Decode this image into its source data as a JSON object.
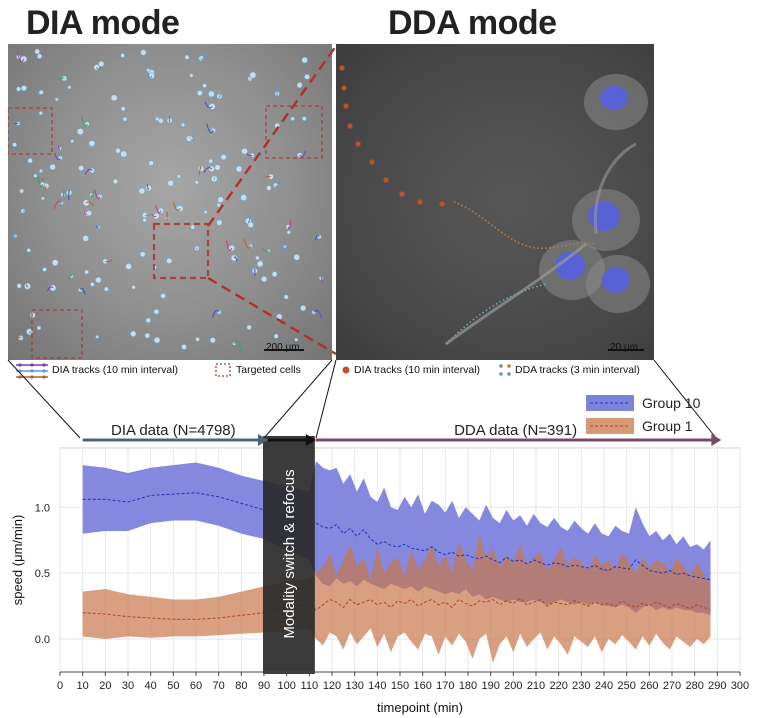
{
  "header": {
    "dia_title": "DIA mode",
    "dda_title": "DDA mode"
  },
  "panels": {
    "dia_scale_label": "200 μm",
    "dda_scale_label": "20 μm"
  },
  "legends": {
    "dia_tracks": "DIA tracks (10 min interval)",
    "targeted_cells": "Targeted cells",
    "dia_tracks_right": "DIA tracks (10 min interval)",
    "dda_tracks": "DDA tracks (3 min interval)"
  },
  "colors": {
    "group10_fill": "#6f74d9",
    "group10_line": "#2b2fb8",
    "group1_fill": "#c8764a",
    "group1_line": "#b0422b",
    "dia_arrow": "#4a6478",
    "dda_arrow": "#7a4a66",
    "switch_box": "#2a2a2a",
    "target_box": "#b03030"
  },
  "chart_data": {
    "type": "area",
    "xlabel": "timepoint (min)",
    "ylabel": "speed (μm/min)",
    "xlim": [
      0,
      300
    ],
    "ylim": [
      -0.25,
      1.45
    ],
    "x_ticks": [
      0,
      10,
      20,
      30,
      40,
      50,
      60,
      70,
      80,
      90,
      100,
      110,
      120,
      130,
      140,
      150,
      160,
      170,
      180,
      190,
      200,
      210,
      220,
      230,
      240,
      250,
      260,
      270,
      280,
      290,
      300
    ],
    "y_ticks": [
      0.0,
      0.5,
      1.0
    ],
    "y_tick_labels": [
      "0.0",
      "0.5",
      "1.0"
    ],
    "grid": true,
    "legend_position": "top-right",
    "phases": [
      {
        "label": "DIA data (N=4798)",
        "x_start": 10,
        "x_end": 90
      },
      {
        "label": "DDA data (N=391)",
        "x_start": 112,
        "x_end": 290
      }
    ],
    "annotation": {
      "label": "Modality switch & refocus",
      "x_start": 90,
      "x_end": 112
    },
    "series": [
      {
        "name": "Group 10",
        "x": [
          10,
          20,
          30,
          40,
          50,
          60,
          70,
          80,
          90,
          100,
          110,
          113,
          116,
          119,
          122,
          125,
          128,
          131,
          134,
          137,
          140,
          143,
          146,
          149,
          152,
          155,
          158,
          161,
          164,
          167,
          170,
          173,
          176,
          179,
          182,
          185,
          188,
          191,
          194,
          197,
          200,
          203,
          206,
          209,
          212,
          215,
          218,
          221,
          224,
          227,
          230,
          233,
          236,
          239,
          242,
          245,
          248,
          251,
          254,
          257,
          260,
          263,
          266,
          269,
          272,
          275,
          278,
          281,
          284,
          287
        ],
        "mean": [
          1.06,
          1.06,
          1.04,
          1.09,
          1.1,
          1.11,
          1.08,
          1.03,
          0.98,
          0.92,
          0.86,
          0.88,
          0.85,
          0.84,
          0.87,
          0.8,
          0.84,
          0.78,
          0.83,
          0.76,
          0.72,
          0.74,
          0.71,
          0.7,
          0.72,
          0.69,
          0.68,
          0.67,
          0.7,
          0.66,
          0.64,
          0.66,
          0.63,
          0.64,
          0.62,
          0.61,
          0.63,
          0.6,
          0.58,
          0.62,
          0.59,
          0.6,
          0.57,
          0.6,
          0.58,
          0.56,
          0.58,
          0.57,
          0.55,
          0.56,
          0.55,
          0.54,
          0.56,
          0.53,
          0.52,
          0.55,
          0.54,
          0.53,
          0.6,
          0.56,
          0.52,
          0.51,
          0.5,
          0.52,
          0.49,
          0.5,
          0.48,
          0.47,
          0.46,
          0.45
        ],
        "upper": [
          1.32,
          1.3,
          1.26,
          1.3,
          1.32,
          1.34,
          1.3,
          1.24,
          1.2,
          1.16,
          1.12,
          1.35,
          1.3,
          1.28,
          1.3,
          1.18,
          1.25,
          1.12,
          1.22,
          1.08,
          1.04,
          1.15,
          1.0,
          0.98,
          1.08,
          1.0,
          1.1,
          0.95,
          1.05,
          1.02,
          0.96,
          1.05,
          0.92,
          1.0,
          0.95,
          0.9,
          1.02,
          0.92,
          0.88,
          0.98,
          0.9,
          0.94,
          0.86,
          0.95,
          0.88,
          0.85,
          0.92,
          0.85,
          0.82,
          0.9,
          0.84,
          0.8,
          0.88,
          0.8,
          0.78,
          0.86,
          0.82,
          0.8,
          1.0,
          0.88,
          0.78,
          0.82,
          0.75,
          0.8,
          0.72,
          0.78,
          0.7,
          0.72,
          0.68,
          0.75
        ],
        "lower": [
          0.8,
          0.82,
          0.82,
          0.88,
          0.9,
          0.9,
          0.86,
          0.8,
          0.76,
          0.68,
          0.6,
          0.48,
          0.42,
          0.4,
          0.46,
          0.42,
          0.44,
          0.4,
          0.45,
          0.42,
          0.4,
          0.38,
          0.42,
          0.4,
          0.38,
          0.4,
          0.36,
          0.4,
          0.38,
          0.36,
          0.34,
          0.36,
          0.34,
          0.38,
          0.32,
          0.34,
          0.3,
          0.32,
          0.3,
          0.28,
          0.3,
          0.28,
          0.28,
          0.3,
          0.28,
          0.26,
          0.28,
          0.3,
          0.28,
          0.26,
          0.28,
          0.26,
          0.28,
          0.26,
          0.25,
          0.24,
          0.26,
          0.24,
          0.2,
          0.24,
          0.26,
          0.22,
          0.24,
          0.22,
          0.24,
          0.22,
          0.22,
          0.2,
          0.2,
          0.18
        ]
      },
      {
        "name": "Group 1",
        "x": [
          10,
          20,
          30,
          40,
          50,
          60,
          70,
          80,
          90,
          100,
          110,
          113,
          116,
          119,
          122,
          125,
          128,
          131,
          134,
          137,
          140,
          143,
          146,
          149,
          152,
          155,
          158,
          161,
          164,
          167,
          170,
          173,
          176,
          179,
          182,
          185,
          188,
          191,
          194,
          197,
          200,
          203,
          206,
          209,
          212,
          215,
          218,
          221,
          224,
          227,
          230,
          233,
          236,
          239,
          242,
          245,
          248,
          251,
          254,
          257,
          260,
          263,
          266,
          269,
          272,
          275,
          278,
          281,
          284,
          287
        ],
        "mean": [
          0.2,
          0.19,
          0.17,
          0.16,
          0.15,
          0.15,
          0.16,
          0.18,
          0.2,
          0.24,
          0.27,
          0.22,
          0.26,
          0.3,
          0.28,
          0.24,
          0.3,
          0.26,
          0.28,
          0.3,
          0.26,
          0.28,
          0.24,
          0.29,
          0.27,
          0.3,
          0.25,
          0.28,
          0.3,
          0.26,
          0.28,
          0.24,
          0.3,
          0.27,
          0.25,
          0.29,
          0.28,
          0.3,
          0.26,
          0.29,
          0.27,
          0.31,
          0.26,
          0.28,
          0.3,
          0.25,
          0.28,
          0.27,
          0.26,
          0.29,
          0.27,
          0.25,
          0.28,
          0.26,
          0.27,
          0.25,
          0.29,
          0.26,
          0.24,
          0.27,
          0.25,
          0.28,
          0.26,
          0.24,
          0.27,
          0.25,
          0.23,
          0.26,
          0.24,
          0.22
        ],
        "upper": [
          0.36,
          0.38,
          0.34,
          0.32,
          0.3,
          0.3,
          0.32,
          0.36,
          0.4,
          0.44,
          0.46,
          0.5,
          0.55,
          0.65,
          0.48,
          0.6,
          0.72,
          0.55,
          0.62,
          0.45,
          0.7,
          0.5,
          0.58,
          0.62,
          0.48,
          0.68,
          0.52,
          0.6,
          0.72,
          0.55,
          0.64,
          0.5,
          0.74,
          0.6,
          0.52,
          0.8,
          0.62,
          0.68,
          0.55,
          0.64,
          0.58,
          0.72,
          0.56,
          0.62,
          0.66,
          0.52,
          0.6,
          0.7,
          0.56,
          0.62,
          0.58,
          0.52,
          0.64,
          0.56,
          0.6,
          0.52,
          0.66,
          0.58,
          0.5,
          0.62,
          0.54,
          0.6,
          0.58,
          0.5,
          0.62,
          0.55,
          0.48,
          0.58,
          0.5,
          0.4
        ],
        "lower": [
          0.02,
          0.0,
          0.02,
          0.01,
          0.02,
          0.02,
          0.03,
          0.04,
          0.05,
          0.06,
          0.08,
          0.0,
          -0.05,
          0.05,
          0.02,
          -0.08,
          0.05,
          -0.04,
          0.02,
          0.08,
          -0.06,
          0.04,
          -0.1,
          0.02,
          0.05,
          -0.02,
          -0.08,
          0.04,
          0.02,
          -0.12,
          0.02,
          -0.05,
          0.04,
          -0.02,
          -0.15,
          0.0,
          0.04,
          -0.18,
          -0.04,
          0.02,
          -0.1,
          0.04,
          -0.06,
          0.0,
          0.05,
          -0.08,
          0.02,
          -0.04,
          -0.12,
          0.02,
          -0.02,
          -0.06,
          0.02,
          -0.1,
          0.0,
          -0.04,
          0.03,
          -0.02,
          -0.08,
          0.02,
          -0.05,
          0.04,
          -0.03,
          -0.08,
          0.02,
          -0.02,
          -0.06,
          0.0,
          -0.04,
          0.02
        ]
      }
    ]
  }
}
